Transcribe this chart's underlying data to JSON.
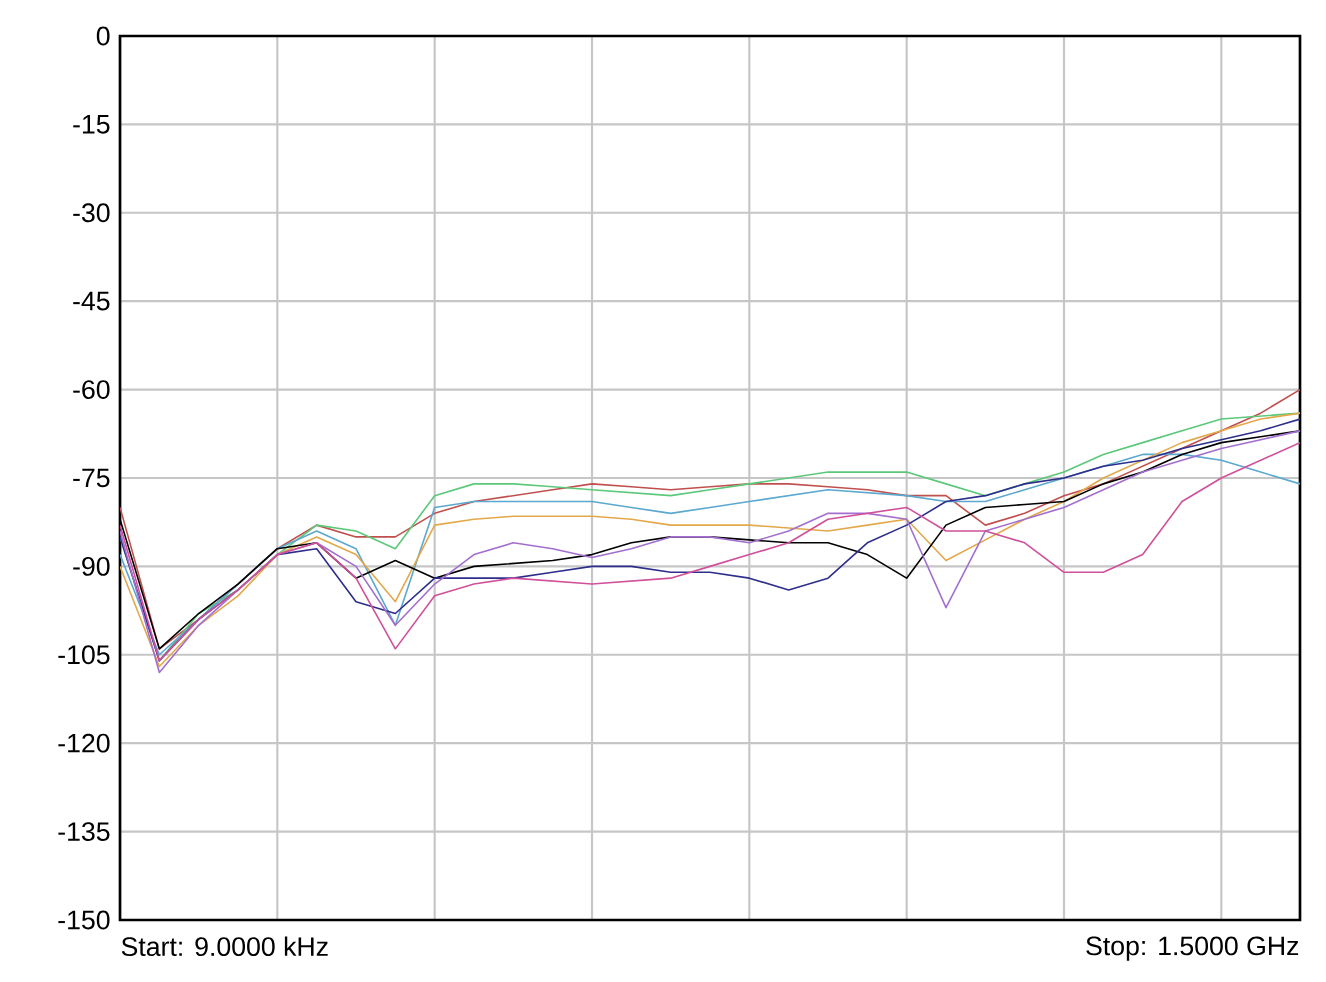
{
  "chart_data": {
    "type": "line",
    "annotations": [
      "Start: 9.0000 kHz",
      "Stop: 1.5000 GHz"
    ],
    "categories": [
      null,
      null,
      null,
      null,
      null,
      null,
      null,
      null,
      null,
      null,
      null,
      null,
      null,
      null,
      null,
      null,
      null,
      null,
      null,
      null,
      null,
      null,
      null,
      null,
      null,
      null,
      null,
      null,
      null,
      null,
      null
    ],
    "ylim": [
      -150,
      0
    ],
    "yticks": [
      0,
      -15,
      -30,
      -45,
      -60,
      -75,
      -90,
      -105,
      -120,
      -135,
      -150
    ],
    "grid": true,
    "marker": "none",
    "line_style": "solid",
    "series": [
      {
        "color": "#c0504d",
        "values": [
          -80,
          -104,
          -99,
          -93,
          -87,
          -83,
          -85,
          -85,
          -81,
          -79,
          -78,
          -77,
          -76,
          -76.5,
          -77,
          -76.5,
          -76,
          -76,
          -76.5,
          -77,
          -78,
          -78,
          -83,
          -81,
          -78,
          -76,
          -73,
          -70,
          -67,
          -64,
          -60
        ]
      },
      {
        "color": "#5cc87a",
        "values": [
          -85,
          -106,
          -98,
          -94,
          -88,
          -83,
          -84,
          -87,
          -78,
          -76,
          -76,
          -76.5,
          -77,
          -77.5,
          -78,
          -77,
          -76,
          -75,
          -74,
          -74,
          -74,
          -76,
          -78,
          -76,
          -74,
          -71,
          -69,
          -67,
          -65,
          -64.5,
          -64
        ]
      },
      {
        "color": "#5ba8d0",
        "values": [
          -88,
          -105,
          -99,
          -93,
          -87,
          -84,
          -87,
          -100,
          -80,
          -79,
          -79,
          -79,
          -79,
          -80,
          -81,
          -80,
          -79,
          -78,
          -77,
          -77.5,
          -78,
          -79,
          -79,
          -77,
          -75,
          -73,
          -71,
          -71,
          -72,
          -74,
          -76
        ]
      },
      {
        "color": "#e3a84a",
        "values": [
          -90,
          -107,
          -100,
          -95,
          -88,
          -85,
          -88,
          -96,
          -83,
          -82,
          -81.5,
          -81.5,
          -81.5,
          -82,
          -83,
          -83,
          -83,
          -83.5,
          -84,
          -83,
          -82,
          -89,
          -85.5,
          -82,
          -79,
          -75,
          -72,
          -69,
          -67,
          -65,
          -64
        ]
      },
      {
        "color": "#000000",
        "values": [
          -82,
          -104,
          -98,
          -93,
          -87,
          -86,
          -92,
          -89,
          -92,
          -90,
          -89.5,
          -89,
          -88,
          -86,
          -85,
          -85,
          -85.5,
          -86,
          -86,
          -88,
          -92,
          -83,
          -80,
          -79.5,
          -79,
          -76,
          -74,
          -71,
          -69,
          -68,
          -67
        ]
      },
      {
        "color": "#2e2e8c",
        "values": [
          -85,
          -106,
          -99,
          -94,
          -88,
          -87,
          -96,
          -98,
          -92,
          -92,
          -92,
          -91,
          -90,
          -90,
          -91,
          -91,
          -92,
          -94,
          -92,
          -86,
          -83,
          -79,
          -78,
          -76,
          -75,
          -73,
          -72,
          -70,
          -68.5,
          -67,
          -65
        ]
      },
      {
        "color": "#a36fcf",
        "values": [
          -84,
          -108,
          -100,
          -94,
          -88,
          -86,
          -90,
          -100,
          -93,
          -88,
          -86,
          -87,
          -88.5,
          -87,
          -85,
          -85,
          -86,
          -84,
          -81,
          -81,
          -82,
          -97,
          -84,
          -82,
          -80,
          -77,
          -74,
          -72,
          -70,
          -68.5,
          -67
        ]
      },
      {
        "color": "#d0509a",
        "values": [
          -83,
          -106,
          -99,
          -94,
          -88,
          -86,
          -92,
          -104,
          -95,
          -93,
          -92,
          -92.5,
          -93,
          -92.5,
          -92,
          -90,
          -88,
          -86,
          -82,
          -81,
          -80,
          -84,
          -84,
          -86,
          -91,
          -91,
          -88,
          -79,
          -75,
          -72,
          -69
        ]
      }
    ]
  }
}
